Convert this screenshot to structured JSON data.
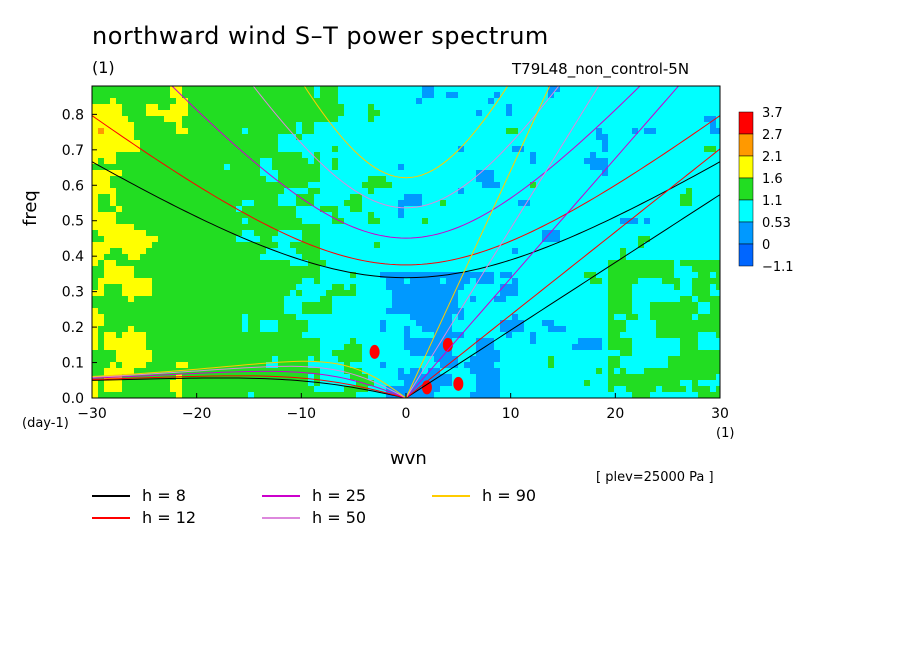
{
  "chart_data": {
    "type": "heatmap",
    "title": "northward wind S–T power spectrum",
    "subtitle_left": "(1)",
    "subtitle_right": "T79L48_non_control-5N",
    "xlabel": "wvn",
    "ylabel": "freq",
    "x_unit": "(1)",
    "y_unit": "(day-1)",
    "level_note": "[ plev=25000 Pa ]",
    "xlim": [
      -30,
      30
    ],
    "ylim": [
      0,
      0.88
    ],
    "x_ticks": [
      "−30",
      "−20",
      "−10",
      "0",
      "10",
      "20",
      "30"
    ],
    "x_tick_values": [
      -30,
      -20,
      -10,
      0,
      10,
      20,
      30
    ],
    "y_ticks": [
      "0.0",
      "0.1",
      "0.2",
      "0.3",
      "0.4",
      "0.5",
      "0.6",
      "0.7",
      "0.8"
    ],
    "y_tick_values": [
      0,
      0.1,
      0.2,
      0.3,
      0.4,
      0.5,
      0.6,
      0.7,
      0.8
    ],
    "colorbar": {
      "labels": [
        "3.7",
        "2.7",
        "2.1",
        "1.6",
        "1.1",
        "0.53",
        "0",
        "−1.1"
      ],
      "colors": [
        "#ff0000",
        "#ff9900",
        "#ffff00",
        "#22dd22",
        "#00ffff",
        "#0099ff",
        "#0066ff"
      ]
    },
    "dispersion_curves": [
      {
        "name": "h =  8",
        "h": 8,
        "color": "#000000"
      },
      {
        "name": "h = 12",
        "h": 12,
        "color": "#ff0000"
      },
      {
        "name": "h = 25",
        "h": 25,
        "color": "#cc00cc"
      },
      {
        "name": "h = 50",
        "h": 50,
        "color": "#dd88dd"
      },
      {
        "name": "h = 90",
        "h": 90,
        "color": "#ffcc00"
      }
    ]
  }
}
